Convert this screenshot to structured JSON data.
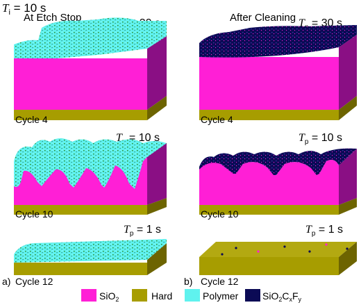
{
  "header": {
    "ti_symbol": "T",
    "ti_sub": "i",
    "ti_value": " = 10 s"
  },
  "columns": [
    {
      "title": "At Etch Stop",
      "panel_letter": "a)"
    },
    {
      "title": "After Cleaning",
      "panel_letter": "b)"
    }
  ],
  "tp_symbol": "T",
  "tp_sub": "p",
  "rows": [
    {
      "tp_value": " = 30 s",
      "cycle_label": "Cycle 4"
    },
    {
      "tp_value": " = 10 s",
      "cycle_label": "Cycle 10"
    },
    {
      "tp_value": " = 1 s",
      "cycle_label": "Cycle 12"
    }
  ],
  "legend": [
    {
      "name": "sio2",
      "text": "SiO",
      "sub1": "2",
      "color": "#ff1fd6"
    },
    {
      "name": "hard",
      "text": "Hard",
      "color": "#a79d00"
    },
    {
      "name": "polymer",
      "text": "Polymer",
      "color": "#5ff2ee"
    },
    {
      "name": "sio2cxfy",
      "text": "SiO",
      "sub1": "2",
      "mid1": "C",
      "sub2": "x",
      "mid2": "F",
      "sub3": "y",
      "color": "#0b0a55"
    }
  ],
  "colors": {
    "sio2_top": "#ff1fd6",
    "sio2_side": "#8a0f84",
    "hard_front": "#a79d00",
    "hard_top": "#c9bf1a",
    "hard_side": "#6d6400",
    "polymer": "#5ff2ee",
    "polymer_dark": "#1c7f6f",
    "sio2cxfy": "#0b0a55",
    "sio2cxfy_light": "#3a36a8",
    "speck": "#2e8b2e"
  }
}
